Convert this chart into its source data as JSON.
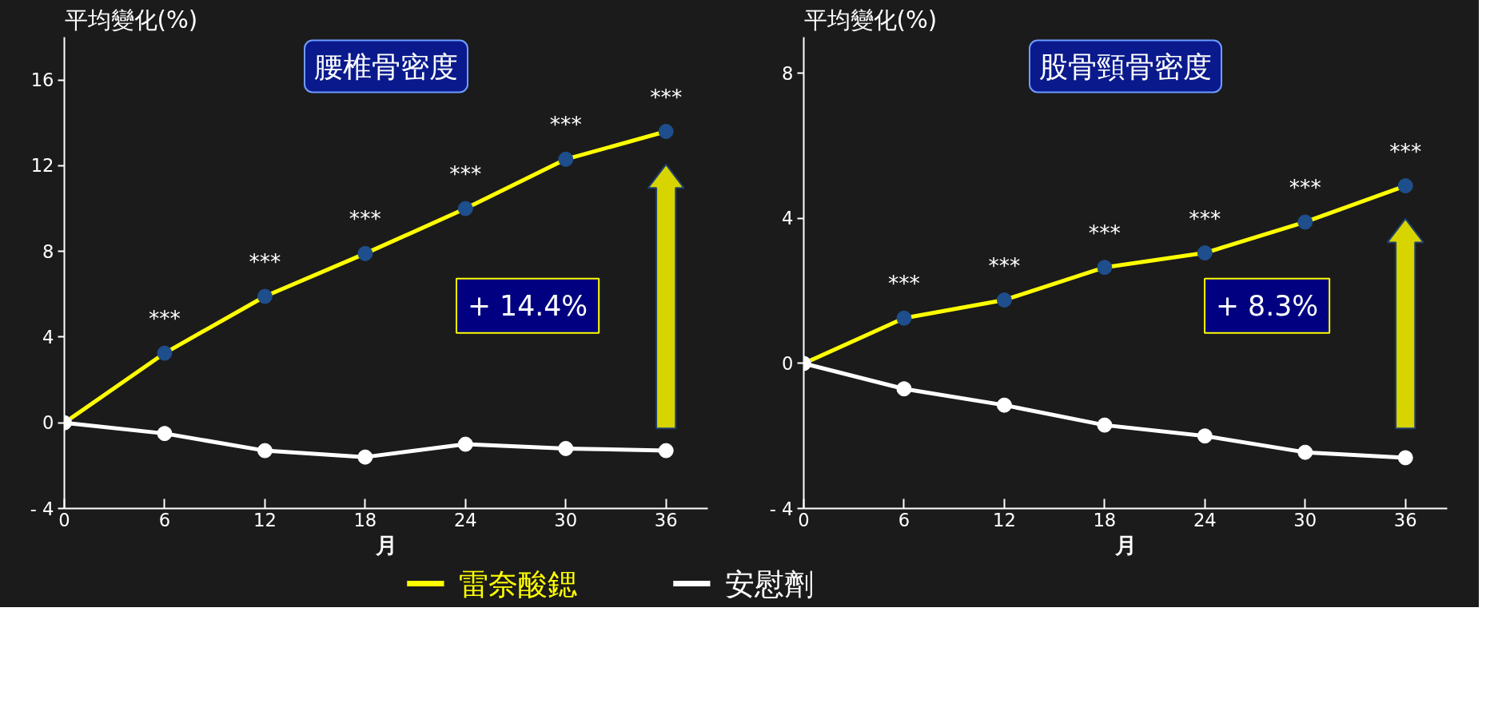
{
  "chart_data": [
    {
      "type": "line",
      "title": "腰椎骨密度",
      "ylabel": "平均變化(%)",
      "xlabel": "月",
      "x": [
        0,
        6,
        12,
        18,
        24,
        30,
        36
      ],
      "series": [
        {
          "name": "雷奈酸鍶",
          "color": "#ffff00",
          "values": [
            0,
            3.25,
            5.9,
            7.9,
            10.0,
            12.3,
            13.6
          ]
        },
        {
          "name": "安慰劑",
          "color": "#ffffff",
          "values": [
            0,
            -0.5,
            -1.3,
            -1.6,
            -1.0,
            -1.2,
            -1.3
          ]
        }
      ],
      "xlim": [
        0,
        38.5
      ],
      "ylim": [
        -4,
        18
      ],
      "xticks": [
        0,
        6,
        12,
        18,
        24,
        30,
        36
      ],
      "yticks": [
        {
          "value": -4,
          "label": "- 4"
        },
        0,
        4,
        8,
        12,
        16
      ],
      "annotations": [
        {
          "text": "***",
          "x": 6,
          "y": 3.25
        },
        {
          "text": "***",
          "x": 12,
          "y": 5.9
        },
        {
          "text": "***",
          "x": 18,
          "y": 7.9
        },
        {
          "text": "***",
          "x": 24,
          "y": 10.0
        },
        {
          "text": "***",
          "x": 30,
          "y": 12.3
        },
        {
          "text": "***",
          "x": 36,
          "y": 13.6
        },
        "+ 14.4%"
      ],
      "marker": "circle",
      "grid": false,
      "legend": "bottom"
    },
    {
      "type": "line",
      "title": "股骨頸骨密度",
      "ylabel": "平均變化(%)",
      "xlabel": "月",
      "x": [
        0,
        6,
        12,
        18,
        24,
        30,
        36
      ],
      "series": [
        {
          "color": "#ffff00",
          "values": [
            0,
            1.25,
            1.75,
            2.65,
            3.05,
            3.9,
            4.9
          ]
        },
        {
          "color": "#ffffff",
          "values": [
            0,
            -0.7,
            -1.15,
            -1.7,
            -2.0,
            -2.45,
            -2.6
          ]
        }
      ],
      "xlim": [
        0,
        38.5
      ],
      "ylim": [
        -4,
        9
      ],
      "xticks": [
        0,
        6,
        12,
        18,
        24,
        30,
        36
      ],
      "yticks": [
        {
          "value": -4,
          "label": "- 4"
        },
        0,
        4,
        8
      ],
      "annotations": [
        {
          "text": "***",
          "x": 6,
          "y": 1.25
        },
        {
          "text": "***",
          "x": 12,
          "y": 1.75
        },
        {
          "text": "***",
          "x": 18,
          "y": 2.65
        },
        {
          "text": "***",
          "x": 24,
          "y": 3.05
        },
        {
          "text": "***",
          "x": 30,
          "y": 3.9
        },
        {
          "text": "***",
          "x": 36,
          "y": 4.9
        },
        "+ 8.3%"
      ],
      "marker": "circle",
      "grid": false
    }
  ]
}
